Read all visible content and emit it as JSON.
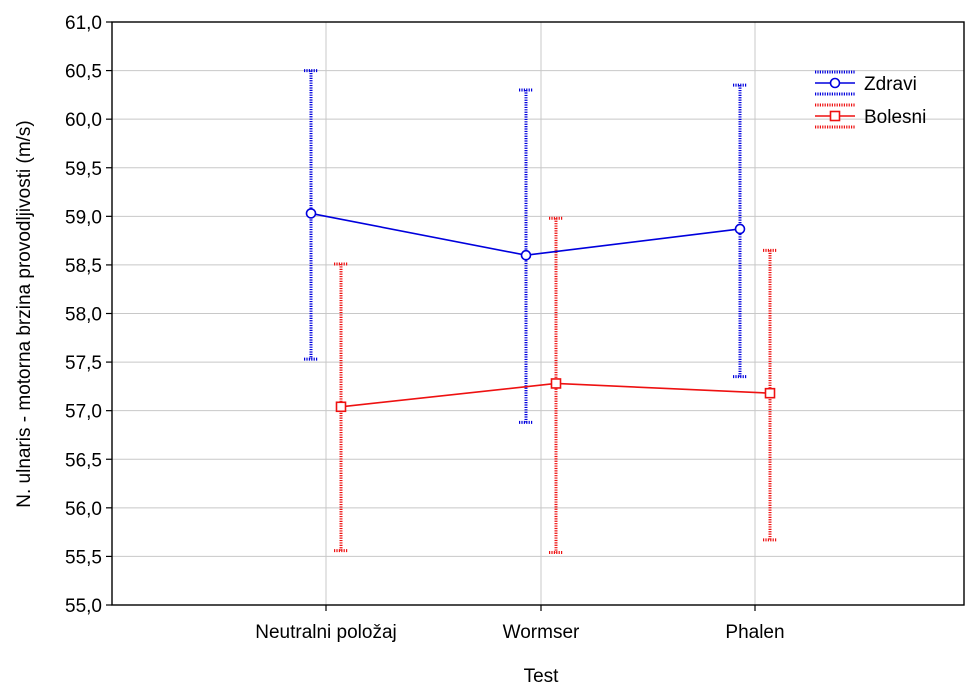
{
  "chart_data": {
    "type": "line",
    "title": "",
    "xlabel": "Test",
    "ylabel": "N. ulnaris - motorna brzina provodljivosti (m/s)",
    "categories": [
      "Neutralni položaj",
      "Wormser",
      "Phalen"
    ],
    "ylim": [
      55.0,
      61.0
    ],
    "ytick_step": 0.5,
    "y_tick_format": "comma-1-decimal",
    "grid": true,
    "legend_position": "top-right",
    "error_bars": true,
    "series": [
      {
        "name": "Zdravi",
        "color": "#0000dd",
        "marker": "circle",
        "values": [
          59.03,
          58.6,
          58.87
        ],
        "lower": [
          57.53,
          56.88,
          57.35
        ],
        "upper": [
          60.5,
          60.3,
          60.35
        ]
      },
      {
        "name": "Bolesni",
        "color": "#ee1111",
        "marker": "square",
        "values": [
          57.04,
          57.28,
          57.18
        ],
        "lower": [
          55.56,
          55.54,
          55.67
        ],
        "upper": [
          58.51,
          58.98,
          58.65
        ]
      }
    ]
  }
}
